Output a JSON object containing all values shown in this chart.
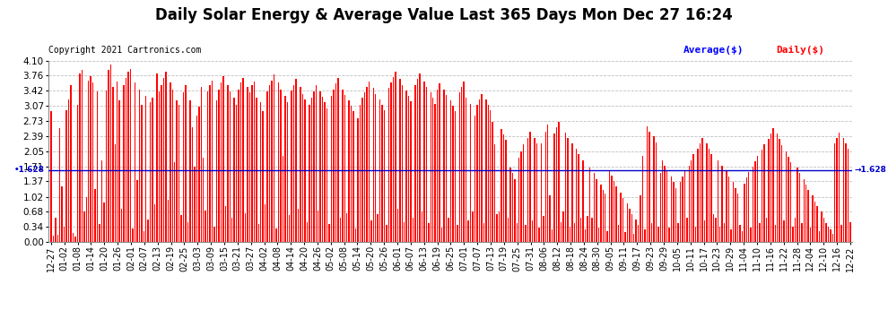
{
  "title": "Daily Solar Energy & Average Value Last 365 Days Mon Dec 27 16:24",
  "copyright": "Copyright 2021 Cartronics.com",
  "average_value": 1.628,
  "average_label": "1.628",
  "bar_color": "#ff0000",
  "average_line_color": "#0000cc",
  "background_color": "#ffffff",
  "grid_color": "#b0b0b0",
  "ylim": [
    0.0,
    4.1
  ],
  "yticks": [
    0.0,
    0.34,
    0.68,
    1.02,
    1.37,
    1.71,
    2.05,
    2.39,
    2.73,
    3.07,
    3.42,
    3.76,
    4.1
  ],
  "legend_average_color": "#0000ff",
  "legend_daily_color": "#ff0000",
  "title_fontsize": 12,
  "copyright_fontsize": 7,
  "tick_fontsize": 7.5,
  "x_labels": [
    "12-27",
    "01-02",
    "01-08",
    "01-14",
    "01-20",
    "01-26",
    "02-01",
    "02-07",
    "02-13",
    "02-19",
    "02-25",
    "03-03",
    "03-09",
    "03-15",
    "03-21",
    "03-27",
    "04-02",
    "04-08",
    "04-14",
    "04-20",
    "04-26",
    "05-02",
    "05-08",
    "05-14",
    "05-20",
    "05-26",
    "06-01",
    "06-07",
    "06-13",
    "06-19",
    "06-25",
    "07-01",
    "07-07",
    "07-13",
    "07-19",
    "07-25",
    "07-31",
    "08-06",
    "08-12",
    "08-18",
    "08-24",
    "08-30",
    "09-05",
    "09-11",
    "09-17",
    "09-23",
    "09-29",
    "10-05",
    "10-11",
    "10-17",
    "10-23",
    "10-29",
    "11-04",
    "11-10",
    "11-16",
    "11-22",
    "11-28",
    "12-04",
    "12-10",
    "12-16",
    "12-22"
  ],
  "bar_values": [
    2.95,
    0.14,
    0.55,
    0.17,
    2.58,
    1.25,
    0.34,
    2.98,
    3.21,
    3.54,
    0.2,
    0.12,
    3.1,
    3.8,
    3.88,
    0.68,
    1.02,
    3.65,
    3.75,
    3.6,
    1.2,
    3.4,
    0.4,
    1.85,
    0.9,
    3.42,
    3.88,
    4.0,
    3.5,
    2.2,
    3.62,
    3.2,
    0.75,
    3.55,
    3.7,
    3.85,
    3.9,
    0.3,
    3.6,
    1.4,
    3.45,
    3.1,
    0.25,
    3.3,
    0.5,
    3.15,
    3.25,
    0.85,
    3.8,
    3.4,
    3.55,
    3.7,
    3.85,
    0.95,
    3.6,
    3.45,
    1.8,
    3.2,
    3.1,
    0.6,
    3.38,
    3.55,
    0.45,
    3.2,
    2.6,
    1.7,
    2.85,
    3.05,
    3.5,
    1.9,
    0.7,
    3.4,
    3.55,
    3.65,
    0.35,
    3.2,
    3.45,
    3.6,
    3.75,
    0.8,
    3.55,
    3.4,
    0.55,
    3.25,
    3.1,
    3.45,
    3.6,
    3.7,
    0.65,
    3.5,
    3.38,
    3.55,
    3.62,
    3.25,
    0.4,
    3.15,
    2.95,
    0.85,
    3.4,
    3.55,
    3.65,
    3.78,
    0.3,
    3.6,
    3.45,
    1.95,
    3.3,
    3.15,
    0.6,
    3.42,
    3.55,
    3.68,
    0.75,
    3.5,
    3.35,
    3.22,
    0.45,
    3.1,
    3.25,
    3.4,
    3.55,
    0.7,
    3.4,
    3.28,
    3.15,
    3.02,
    0.4,
    3.3,
    3.45,
    3.58,
    3.7,
    0.55,
    3.45,
    3.32,
    0.65,
    3.2,
    3.08,
    2.95,
    0.3,
    2.8,
    3.1,
    3.25,
    3.38,
    3.5,
    3.62,
    0.48,
    3.48,
    3.35,
    0.62,
    3.22,
    3.1,
    2.98,
    0.38,
    3.48,
    3.6,
    3.72,
    3.84,
    0.75,
    3.68,
    3.55,
    0.45,
    3.42,
    3.3,
    3.18,
    0.55,
    3.55,
    3.68,
    3.8,
    0.68,
    3.62,
    3.5,
    0.42,
    3.38,
    3.25,
    3.12,
    3.45,
    3.58,
    0.32,
    3.45,
    3.32,
    0.55,
    3.2,
    3.08,
    2.95,
    0.38,
    3.38,
    3.5,
    3.62,
    3.25,
    0.48,
    3.12,
    0.68,
    2.85,
    3.1,
    3.22,
    3.35,
    0.42,
    3.22,
    3.1,
    2.98,
    2.72,
    2.2,
    0.62,
    0.68,
    2.55,
    2.42,
    2.3,
    0.55,
    1.68,
    1.55,
    1.42,
    0.42,
    1.9,
    2.05,
    2.2,
    0.38,
    2.35,
    2.5,
    0.48,
    2.35,
    2.22,
    0.32,
    2.22,
    0.58,
    2.5,
    2.65,
    1.05,
    0.28,
    2.45,
    2.6,
    2.72,
    0.45,
    0.68,
    2.48,
    2.35,
    0.35,
    2.22,
    0.42,
    2.1,
    1.98,
    0.55,
    1.85,
    0.28,
    0.58,
    1.68,
    0.55,
    1.55,
    1.42,
    0.32,
    1.3,
    1.18,
    1.1,
    0.25,
    1.62,
    1.5,
    1.38,
    1.25,
    0.38,
    1.12,
    1.0,
    0.22,
    0.88,
    0.75,
    0.62,
    0.18,
    0.5,
    0.38,
    1.05,
    1.95,
    0.28,
    2.62,
    2.5,
    0.42,
    2.38,
    2.25,
    0.35,
    1.55,
    1.85,
    1.72,
    1.6,
    0.32,
    1.48,
    1.35,
    1.22,
    0.42,
    1.35,
    1.48,
    1.6,
    0.55,
    1.72,
    1.85,
    1.98,
    0.35,
    2.1,
    2.22,
    2.35,
    0.48,
    2.22,
    2.1,
    1.98,
    0.62,
    0.55,
    1.85,
    0.35,
    1.72,
    0.42,
    1.6,
    1.48,
    0.28,
    1.35,
    1.22,
    1.1,
    0.38,
    0.25,
    1.32,
    1.45,
    1.58,
    0.32,
    1.7,
    1.82,
    1.95,
    0.42,
    2.08,
    2.2,
    0.55,
    2.32,
    2.45,
    2.58,
    0.38,
    2.45,
    2.32,
    2.18,
    0.48,
    2.05,
    1.92,
    1.8,
    0.35,
    0.55,
    1.68,
    1.55,
    0.42,
    1.42,
    1.3,
    1.18,
    0.32,
    1.05,
    0.92,
    0.8,
    0.25,
    0.68,
    0.55,
    0.42,
    0.35,
    0.28,
    0.18,
    2.22,
    2.35,
    2.48,
    0.38,
    2.35,
    2.22,
    2.1,
    0.45
  ]
}
